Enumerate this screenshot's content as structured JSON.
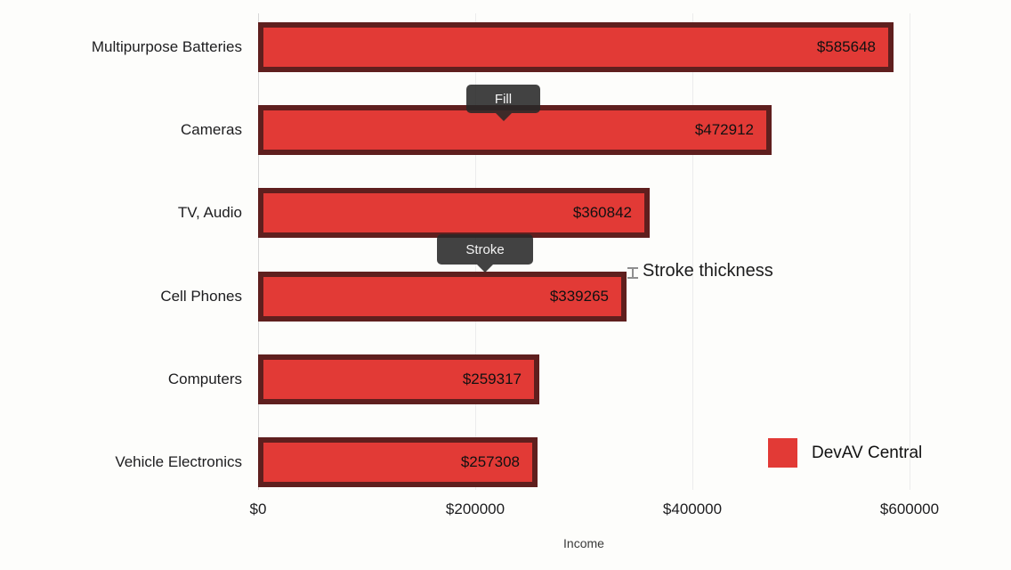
{
  "chart_data": {
    "type": "bar",
    "orientation": "horizontal",
    "title": "",
    "xlabel": "Income",
    "categories": [
      "Multipurpose Batteries",
      "Cameras",
      "TV, Audio",
      "Cell Phones",
      "Computers",
      "Vehicle Electronics"
    ],
    "series": [
      {
        "name": "DevAV Central",
        "values": [
          585648,
          472912,
          360842,
          339265,
          259317,
          257308
        ]
      }
    ],
    "bar_value_labels": [
      "$585648",
      "$472912",
      "$360842",
      "$339265",
      "$259317",
      "$257308"
    ],
    "x_ticks": [
      {
        "label": "$0",
        "value": 0
      },
      {
        "label": "$200000",
        "value": 200000
      },
      {
        "label": "$400000",
        "value": 400000
      },
      {
        "label": "$600000",
        "value": 600000
      }
    ],
    "xlim": [
      0,
      600000
    ],
    "grid": "vertical-only",
    "legend_position": "bottom-right",
    "colors": {
      "bar_fill": "#e23a36",
      "bar_stroke": "#5f1f1e",
      "gridline": "#ececec",
      "axis_line": "#d8d8d8",
      "value_text": "#111111",
      "background": "#fdfdfb"
    },
    "bar_stroke_width_px": 6
  },
  "legend": {
    "items": [
      {
        "label": "DevAV Central",
        "swatch_color": "#e23a36"
      }
    ]
  },
  "annotations": {
    "fill_callout": {
      "label": "Fill"
    },
    "stroke_callout": {
      "label": "Stroke"
    },
    "stroke_thickness": {
      "label": "Stroke thickness"
    }
  }
}
